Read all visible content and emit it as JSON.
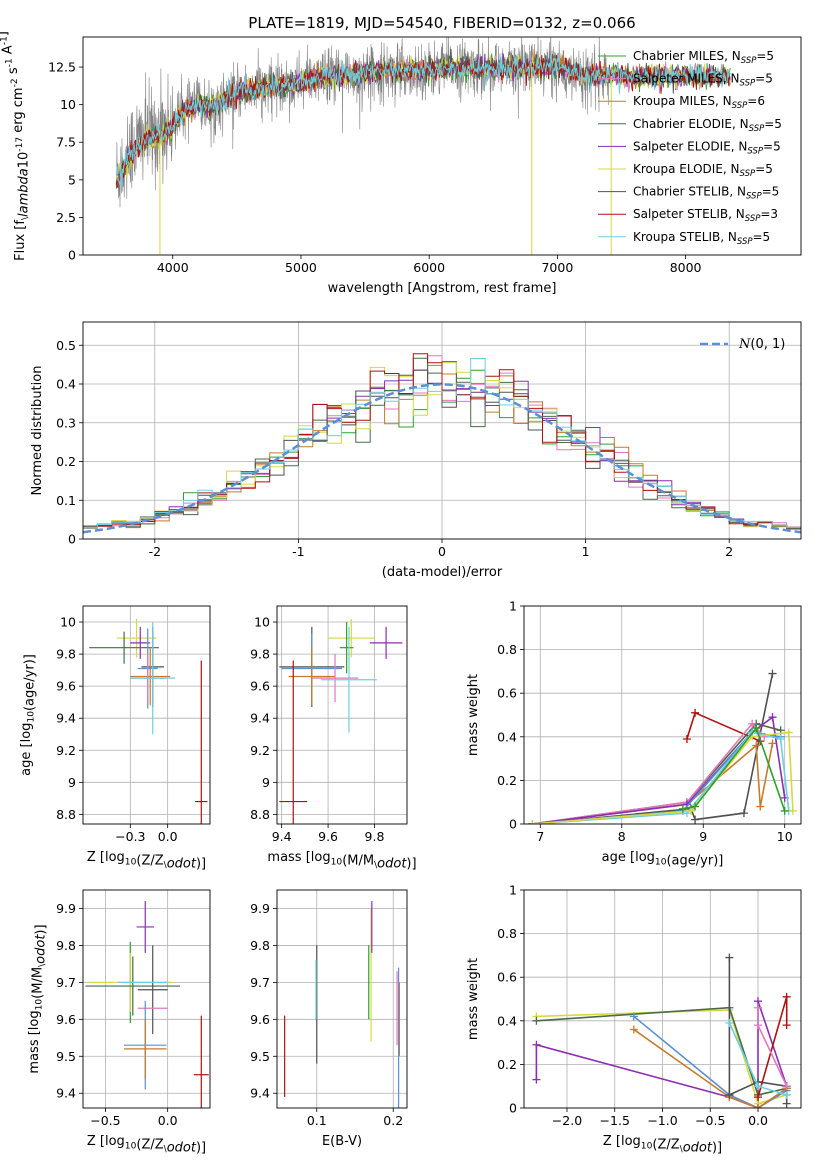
{
  "figure_title": "PLATE=1819, MJD=54540, FIBERID=0132, z=0.066",
  "colors": {
    "spectrum": "#808080",
    "grid": "#b0b0b0",
    "models": [
      "#2ca02c",
      "#e377c2",
      "#c87a2a",
      "#4a6a4a",
      "#8c2db5",
      "#d8d840",
      "#505050",
      "#b01010",
      "#6ad0e0"
    ],
    "normal": "#5b8fd6"
  },
  "chart_data": [
    {
      "id": "spectrum",
      "type": "line",
      "title": "PLATE=1819, MJD=54540, FIBERID=0132, z=0.066",
      "xlabel": "wavelength [Angstrom, rest frame]",
      "ylabel": "Flux [f$_\\lambda$10$^{-17}$ erg cm$^{-2}$ s$^{-1}$ A$^{-1}$]",
      "xlim": [
        3300,
        8900
      ],
      "ylim": [
        0,
        14.5
      ],
      "xticks": [
        4000,
        5000,
        6000,
        7000,
        8000
      ],
      "yticks": [
        0.0,
        2.5,
        5.0,
        7.5,
        10.0,
        12.5
      ],
      "grid": false,
      "legend_position": "right",
      "legend": [
        {
          "label": "Chabrier MILES, N",
          "sub": "SSP",
          "tail": "=5",
          "color": "#2ca02c"
        },
        {
          "label": "Salpeter MILES, N",
          "sub": "SSP",
          "tail": "=5",
          "color": "#e377c2"
        },
        {
          "label": "Kroupa MILES, N",
          "sub": "SSP",
          "tail": "=6",
          "color": "#c87a2a"
        },
        {
          "label": "Chabrier ELODIE, N",
          "sub": "SSP",
          "tail": "=5",
          "color": "#4a6a4a"
        },
        {
          "label": "Salpeter ELODIE, N",
          "sub": "SSP",
          "tail": "=5",
          "color": "#8c2db5"
        },
        {
          "label": "Kroupa ELODIE, N",
          "sub": "SSP",
          "tail": "=5",
          "color": "#d8d840"
        },
        {
          "label": "Chabrier STELIB, N",
          "sub": "SSP",
          "tail": "=5",
          "color": "#505050"
        },
        {
          "label": "Salpeter STELIB, N",
          "sub": "SSP",
          "tail": "=3",
          "color": "#b01010"
        },
        {
          "label": "Kroupa STELIB, N",
          "sub": "SSP",
          "tail": "=5",
          "color": "#6ad0e0"
        }
      ],
      "continuum": {
        "x": [
          3560,
          3650,
          3700,
          3800,
          3900,
          4000,
          4100,
          4200,
          4300,
          4400,
          4500,
          4600,
          4700,
          4800,
          4900,
          5000,
          5200,
          5400,
          5600,
          5800,
          6000,
          6200,
          6400,
          6600,
          6800,
          7000,
          7200,
          7400
        ],
        "y": [
          5.2,
          6.8,
          7.4,
          8.0,
          8.3,
          8.8,
          9.6,
          10.0,
          9.8,
          10.3,
          10.8,
          11.0,
          11.1,
          11.3,
          11.3,
          11.5,
          11.9,
          12.0,
          12.2,
          12.3,
          12.3,
          12.5,
          12.4,
          12.4,
          12.5,
          12.5,
          12.0,
          11.9
        ]
      },
      "model_range": [
        3560,
        8350
      ],
      "drops": [
        3900,
        6800,
        7420
      ]
    },
    {
      "id": "residual-hist",
      "type": "line",
      "xlabel": "(data-model)/error",
      "ylabel": "Normed distribution",
      "xlim": [
        -2.5,
        2.5
      ],
      "ylim": [
        0,
        0.56
      ],
      "xticks": [
        -2,
        -1,
        0,
        1,
        2
      ],
      "yticks": [
        0.0,
        0.1,
        0.2,
        0.3,
        0.4,
        0.5
      ],
      "grid": true,
      "legend_position": "upper right",
      "legend_label": "N(0,1)",
      "bin_width": 0.1
    },
    {
      "id": "age-vs-Z",
      "type": "scatter",
      "xlabel": "Z [log$_{10}$(Z/Z$_\\odot$)]",
      "ylabel": "age  [log$_{10}$(age/yr)]",
      "xlim": [
        -0.68,
        0.34
      ],
      "ylim": [
        8.74,
        10.1
      ],
      "xticks": [
        -0.3,
        0.0
      ],
      "xtick_labels": [
        "−0.3",
        "0.0"
      ],
      "yticks": [
        8.8,
        9.0,
        9.2,
        9.4,
        9.6,
        9.8,
        10.0
      ],
      "grid": true,
      "points": [
        {
          "x": -0.25,
          "xerr": 0.16,
          "y": 9.9,
          "yerr": 0.12,
          "color": "#d8d840"
        },
        {
          "x": -0.22,
          "xerr": 0.08,
          "y": 9.87,
          "yerr": 0.1,
          "color": "#8c2db5"
        },
        {
          "x": -0.6,
          "xerr": 0.0,
          "y": 9.84,
          "yerr": 0.0,
          "color": "#2ca02c"
        },
        {
          "x": -0.35,
          "xerr": 0.28,
          "y": 9.84,
          "yerr": 0.1,
          "color": "#4a6a4a"
        },
        {
          "x": -0.12,
          "xerr": 0.09,
          "y": 9.72,
          "yerr": 0.25,
          "color": "#505050"
        },
        {
          "x": -0.16,
          "xerr": 0.08,
          "y": 9.71,
          "yerr": 0.25,
          "color": "#5b8fd6"
        },
        {
          "x": -0.14,
          "xerr": 0.16,
          "y": 9.66,
          "yerr": 0.18,
          "color": "#c87a2a"
        },
        {
          "x": -0.16,
          "xerr": 0.14,
          "y": 9.65,
          "yerr": 0.15,
          "color": "#e377c2"
        },
        {
          "x": -0.12,
          "xerr": 0.18,
          "y": 9.65,
          "yerr": 0.35,
          "color": "#6ad0e0"
        },
        {
          "x": 0.27,
          "xerr": 0.05,
          "y": 8.88,
          "yerr": 0.88,
          "color": "#b01010"
        }
      ]
    },
    {
      "id": "age-vs-mass",
      "type": "scatter",
      "xlabel": "mass [log$_{10}$(M/M$_\\odot$)]",
      "ylabel": "",
      "xlim": [
        9.38,
        9.94
      ],
      "ylim": [
        8.74,
        10.1
      ],
      "xticks": [
        9.4,
        9.6,
        9.8
      ],
      "yticks": [
        8.8,
        9.0,
        9.2,
        9.4,
        9.6,
        9.8,
        10.0
      ],
      "grid": true,
      "points": [
        {
          "x": 9.7,
          "xerr": 0.1,
          "y": 9.9,
          "yerr": 0.12,
          "color": "#d8d840"
        },
        {
          "x": 9.85,
          "xerr": 0.07,
          "y": 9.87,
          "yerr": 0.1,
          "color": "#8c2db5"
        },
        {
          "x": 9.68,
          "xerr": 0.03,
          "y": 9.84,
          "yerr": 0.16,
          "color": "#2ca02c"
        },
        {
          "x": 9.53,
          "xerr": 0.14,
          "y": 9.72,
          "yerr": 0.25,
          "color": "#505050"
        },
        {
          "x": 9.53,
          "xerr": 0.13,
          "y": 9.71,
          "yerr": 0.22,
          "color": "#5b8fd6"
        },
        {
          "x": 9.53,
          "xerr": 0.1,
          "y": 9.66,
          "yerr": 0.18,
          "color": "#c87a2a"
        },
        {
          "x": 9.63,
          "xerr": 0.1,
          "y": 9.65,
          "yerr": 0.15,
          "color": "#e377c2"
        },
        {
          "x": 9.69,
          "xerr": 0.12,
          "y": 9.64,
          "yerr": 0.33,
          "color": "#6ad0e0"
        },
        {
          "x": 9.45,
          "xerr": 0.06,
          "y": 8.88,
          "yerr": 0.88,
          "color": "#b01010"
        }
      ]
    },
    {
      "id": "massweight-vs-age",
      "type": "line",
      "xlabel": "age  [log$_{10}$(age/yr)]",
      "ylabel": "mass weight",
      "xlim": [
        6.8,
        10.2
      ],
      "ylim": [
        0,
        1.0
      ],
      "xticks": [
        7,
        8,
        9,
        10
      ],
      "yticks": [
        0.0,
        0.2,
        0.4,
        0.6,
        0.8,
        1.0
      ],
      "grid": true,
      "series": [
        {
          "color": "#b01010",
          "x": [
            8.8,
            8.9,
            9.7
          ],
          "y": [
            0.39,
            0.51,
            0.38
          ]
        },
        {
          "color": "#505050",
          "x": [
            6.9,
            8.85,
            8.9,
            9.5,
            9.85
          ],
          "y": [
            0.0,
            0.07,
            0.02,
            0.05,
            0.69
          ]
        },
        {
          "color": "#4a6a4a",
          "x": [
            6.9,
            8.8,
            9.65,
            9.95
          ],
          "y": [
            0.0,
            0.1,
            0.46,
            0.43
          ]
        },
        {
          "color": "#e377c2",
          "x": [
            6.9,
            8.8,
            9.6,
            9.75
          ],
          "y": [
            0.0,
            0.1,
            0.46,
            0.4
          ]
        },
        {
          "color": "#c87a2a",
          "x": [
            6.9,
            8.8,
            9.65,
            9.7,
            9.85
          ],
          "y": [
            0.0,
            0.09,
            0.36,
            0.08,
            0.37
          ]
        },
        {
          "color": "#8c2db5",
          "x": [
            6.9,
            8.8,
            9.6,
            9.85,
            10.0
          ],
          "y": [
            0.0,
            0.09,
            0.42,
            0.49,
            0.12
          ]
        },
        {
          "color": "#5b8fd6",
          "x": [
            6.9,
            8.75,
            9.6,
            9.95
          ],
          "y": [
            0.0,
            0.06,
            0.42,
            0.4
          ]
        },
        {
          "color": "#6ad0e0",
          "x": [
            6.9,
            8.8,
            9.6,
            9.95,
            10.05
          ],
          "y": [
            0.0,
            0.05,
            0.42,
            0.39,
            0.06
          ]
        },
        {
          "color": "#d8d840",
          "x": [
            6.9,
            8.85,
            9.6,
            10.05,
            10.1
          ],
          "y": [
            0.0,
            0.06,
            0.4,
            0.42,
            0.06
          ]
        },
        {
          "color": "#2ca02c",
          "x": [
            8.75,
            8.9,
            9.65,
            10.0
          ],
          "y": [
            0.07,
            0.08,
            0.44,
            0.06
          ]
        }
      ]
    },
    {
      "id": "mass-vs-Z",
      "type": "scatter",
      "xlabel": "Z [log$_{10}$(Z/Z$_\\odot$)]",
      "ylabel": "mass [log$_{10}$(M/M$_\\odot$)]",
      "xlim": [
        -0.68,
        0.34
      ],
      "ylim": [
        9.36,
        9.95
      ],
      "xticks": [
        -0.5,
        0.0
      ],
      "xtick_labels": [
        "−0.5",
        "0.0"
      ],
      "yticks": [
        9.4,
        9.5,
        9.6,
        9.7,
        9.8,
        9.9
      ],
      "grid": true,
      "points": [
        {
          "x": -0.18,
          "xerr": 0.07,
          "y": 9.85,
          "yerr": 0.07,
          "color": "#8c2db5"
        },
        {
          "x": -0.12,
          "xerr": 0.0,
          "y": 9.8,
          "yerr": 0.0,
          "color": "#e377c2"
        },
        {
          "x": -0.3,
          "xerr": 0.0,
          "y": 9.7,
          "yerr": 0.11,
          "color": "#2ca02c"
        },
        {
          "x": -0.3,
          "xerr": 0.34,
          "y": 9.7,
          "yerr": 0.08,
          "color": "#d8d840"
        },
        {
          "x": -0.28,
          "xerr": 0.38,
          "y": 9.69,
          "yerr": 0.08,
          "color": "#4a6a4a"
        },
        {
          "x": -0.12,
          "xerr": 0.12,
          "y": 9.68,
          "yerr": 0.12,
          "color": "#505050"
        },
        {
          "x": -0.2,
          "xerr": 0.2,
          "y": 9.7,
          "yerr": 0.0,
          "color": "#6ad0e0"
        },
        {
          "x": -0.12,
          "xerr": 0.12,
          "y": 9.63,
          "yerr": 0.0,
          "color": "#e377c2"
        },
        {
          "x": -0.18,
          "xerr": 0.17,
          "y": 9.53,
          "yerr": 0.12,
          "color": "#5b8fd6"
        },
        {
          "x": -0.18,
          "xerr": 0.17,
          "y": 9.52,
          "yerr": 0.08,
          "color": "#c87a2a"
        },
        {
          "x": 0.27,
          "xerr": 0.06,
          "y": 9.45,
          "yerr": 0.16,
          "color": "#b01010"
        }
      ]
    },
    {
      "id": "mass-vs-EBV",
      "type": "scatter",
      "xlabel": "E(B-V)",
      "ylabel": "",
      "xlim": [
        0.048,
        0.218
      ],
      "ylim": [
        9.36,
        9.95
      ],
      "xticks": [
        0.1,
        0.2
      ],
      "yticks": [
        9.4,
        9.5,
        9.6,
        9.7,
        9.8,
        9.9
      ],
      "grid": true,
      "points": [
        {
          "x": 0.058,
          "xerr": 0.0,
          "y": 9.5,
          "yerr": 0.11,
          "color": "#b01010"
        },
        {
          "x": 0.1,
          "xerr": 0.0,
          "y": 9.64,
          "yerr": 0.16,
          "color": "#505050"
        },
        {
          "x": 0.099,
          "xerr": 0.0,
          "y": 9.68,
          "yerr": 0.08,
          "color": "#6ad0e0"
        },
        {
          "x": 0.168,
          "xerr": 0.0,
          "y": 9.7,
          "yerr": 0.1,
          "color": "#2ca02c"
        },
        {
          "x": 0.171,
          "xerr": 0.0,
          "y": 9.72,
          "yerr": 0.18,
          "color": "#d8d840"
        },
        {
          "x": 0.172,
          "xerr": 0.0,
          "y": 9.85,
          "yerr": 0.07,
          "color": "#8c2db5"
        },
        {
          "x": 0.205,
          "xerr": 0.0,
          "y": 9.63,
          "yerr": 0.1,
          "color": "#e377c2"
        },
        {
          "x": 0.208,
          "xerr": 0.0,
          "y": 9.6,
          "yerr": 0.1,
          "color": "#c87a2a"
        },
        {
          "x": 0.207,
          "xerr": 0.0,
          "y": 9.55,
          "yerr": 0.19,
          "color": "#5b8fd6"
        }
      ]
    },
    {
      "id": "massweight-vs-Z",
      "type": "line",
      "xlabel": "Z [log$_{10}$(Z/Z$_\\odot$)]",
      "ylabel": "mass weight",
      "xlim": [
        -2.45,
        0.45
      ],
      "ylim": [
        0,
        1.0
      ],
      "xticks": [
        -2.0,
        -1.5,
        -1.0,
        -0.5,
        0.0
      ],
      "xtick_labels": [
        "−2.0",
        "−1.5",
        "−1.0",
        "−0.5",
        "0.0"
      ],
      "yticks": [
        0.0,
        0.2,
        0.4,
        0.6,
        0.8,
        1.0
      ],
      "grid": true,
      "series": [
        {
          "color": "#8c2db5",
          "x": [
            -2.32,
            -2.32,
            -0.3,
            0.0,
            0.0,
            0.3,
            0.3
          ],
          "y": [
            0.13,
            0.29,
            0.05,
            0.0,
            0.49,
            0.1,
            0.09
          ]
        },
        {
          "color": "#d8d840",
          "x": [
            -2.32,
            -0.3,
            0.0,
            0.3
          ],
          "y": [
            0.42,
            0.45,
            0.02,
            0.06
          ]
        },
        {
          "color": "#4a6a4a",
          "x": [
            -2.32,
            -0.3,
            0.0,
            0.3
          ],
          "y": [
            0.4,
            0.46,
            0.06,
            0.09
          ]
        },
        {
          "color": "#5b8fd6",
          "x": [
            -1.3,
            -0.3,
            0.0,
            0.3
          ],
          "y": [
            0.42,
            0.06,
            0.0,
            0.08
          ]
        },
        {
          "color": "#c87a2a",
          "x": [
            -1.3,
            -0.3,
            0.0,
            0.3
          ],
          "y": [
            0.36,
            0.05,
            0.0,
            0.09
          ]
        },
        {
          "color": "#505050",
          "x": [
            -0.3,
            -0.3,
            0.0,
            0.3,
            0.3
          ],
          "y": [
            0.69,
            0.06,
            0.12,
            0.1,
            0.02
          ]
        },
        {
          "color": "#b01010",
          "x": [
            0.0,
            0.3,
            0.3
          ],
          "y": [
            0.05,
            0.51,
            0.38
          ]
        },
        {
          "color": "#e377c2",
          "x": [
            0.0,
            0.0,
            0.3
          ],
          "y": [
            0.46,
            0.38,
            0.1
          ]
        },
        {
          "color": "#6ad0e0",
          "x": [
            -0.3,
            0.0,
            0.3
          ],
          "y": [
            0.39,
            0.1,
            0.06
          ]
        }
      ]
    }
  ]
}
